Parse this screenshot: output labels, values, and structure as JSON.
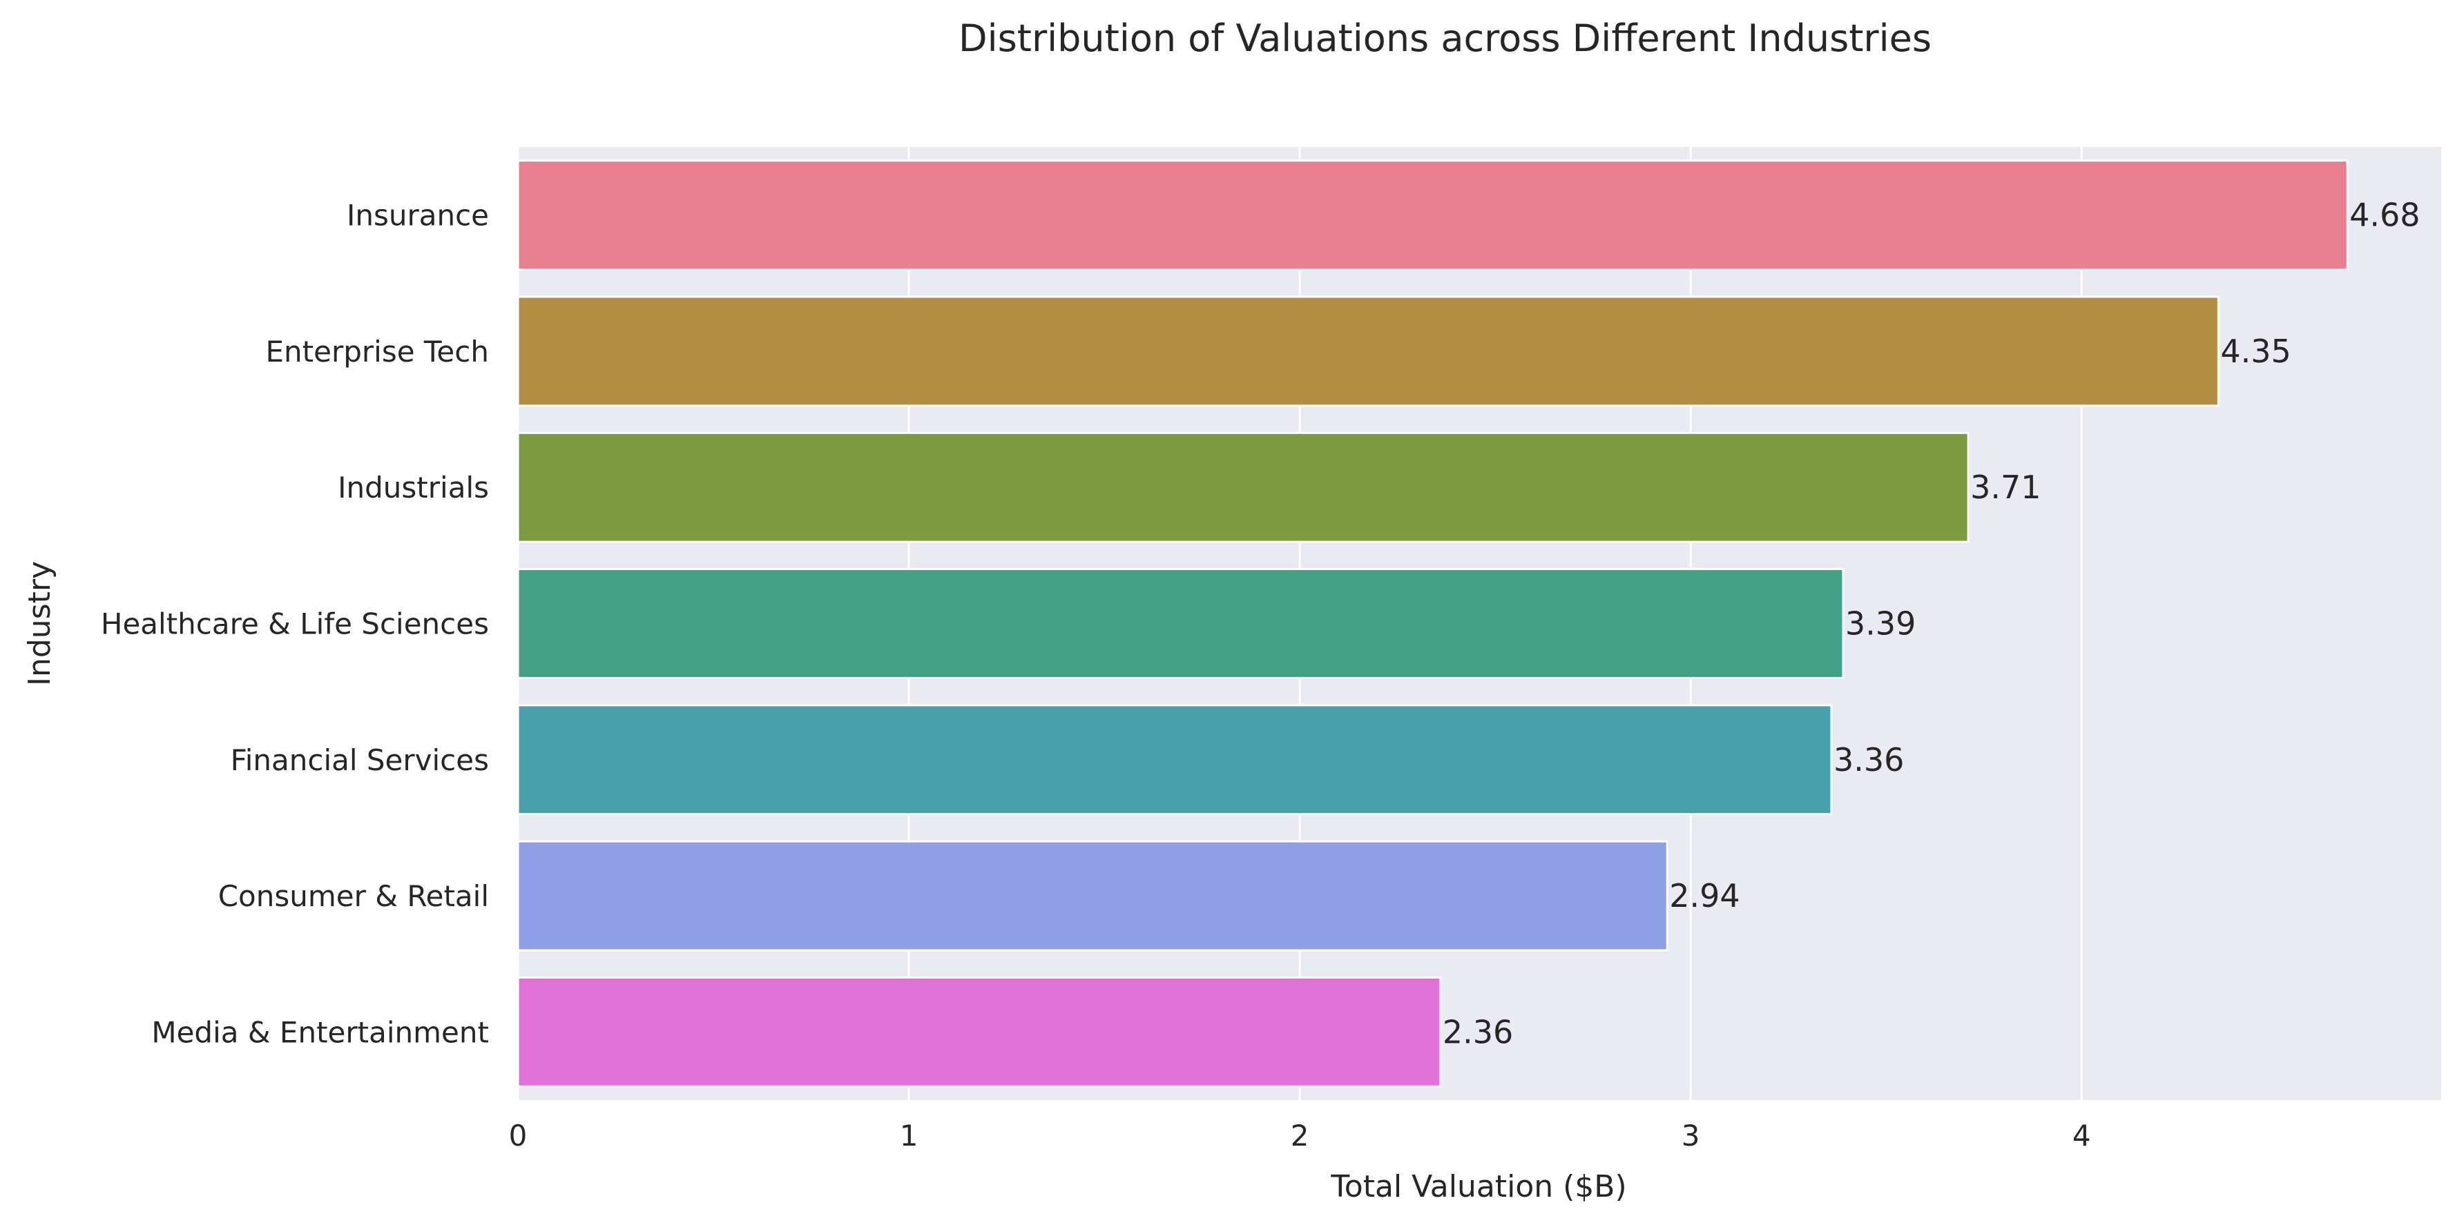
{
  "chart_data": {
    "type": "bar",
    "orientation": "horizontal",
    "title": "Distribution of Valuations across Different Industries",
    "xlabel": "Total Valuation ($B)",
    "ylabel": "Industry",
    "xlim": [
      0,
      4.92
    ],
    "xticks": [
      0,
      1,
      2,
      3,
      4
    ],
    "grid": true,
    "categories": [
      "Insurance",
      "Enterprise Tech",
      "Industrials",
      "Healthcare & Life Sciences",
      "Financial Services",
      "Consumer & Retail",
      "Media & Entertainment"
    ],
    "values": [
      4.68,
      4.35,
      3.71,
      3.39,
      3.36,
      2.94,
      2.36
    ],
    "value_labels": [
      "4.68",
      "4.35",
      "3.71",
      "3.39",
      "3.36",
      "2.94",
      "2.36"
    ],
    "colors": [
      "#e87f91",
      "#b38e45",
      "#7d9a40",
      "#44a084",
      "#49a0ad",
      "#8f9fe5",
      "#e172da"
    ],
    "plot_background": "#eaeaf2",
    "grid_color": "#ffffff"
  }
}
